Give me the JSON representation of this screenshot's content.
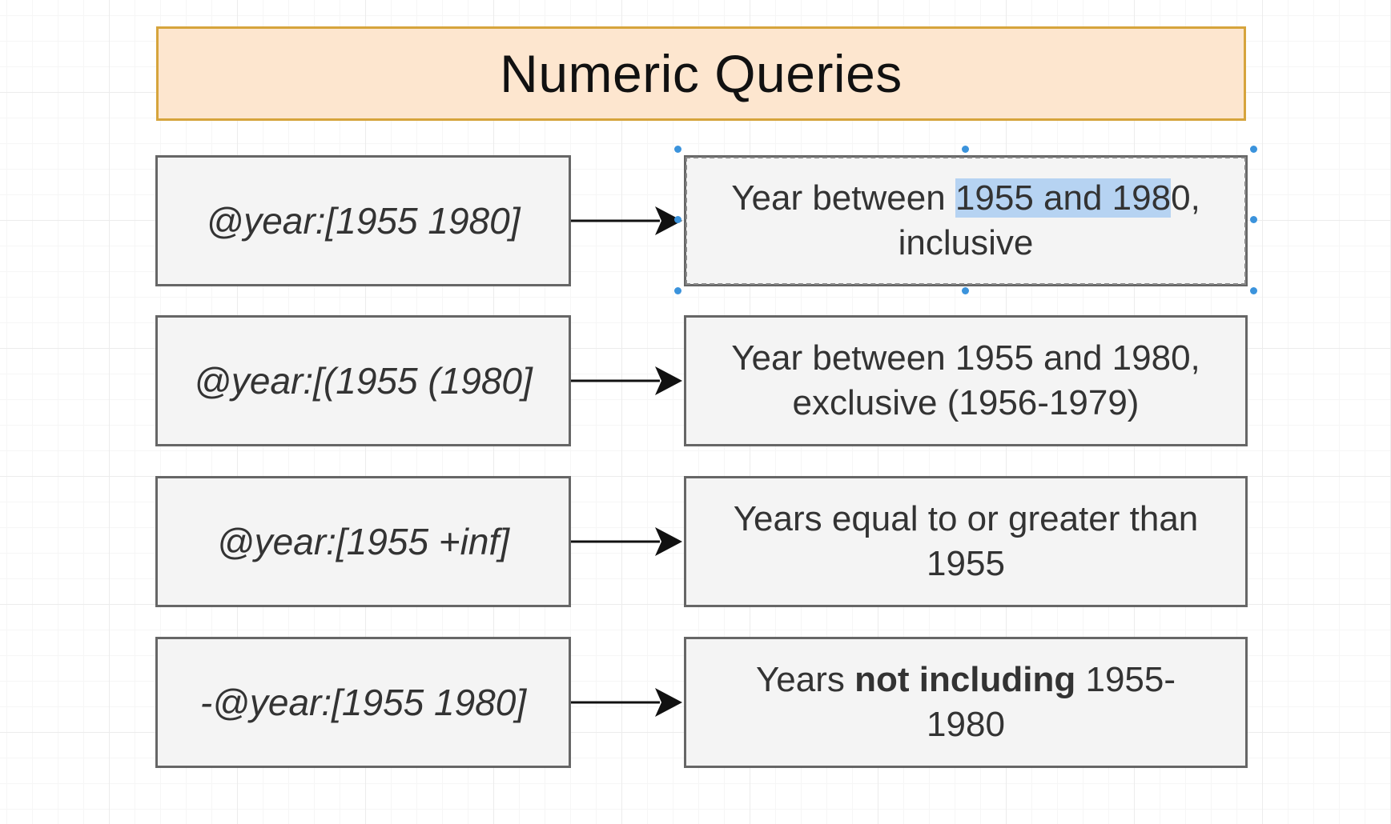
{
  "title": "Numeric Queries",
  "colors": {
    "title_fill": "#fde6cf",
    "title_border": "#d6a43c",
    "node_fill": "#f4f4f4",
    "node_border": "#666666",
    "selection_handle": "#3b93dc",
    "text_highlight": "#b6d3f2"
  },
  "rows": [
    {
      "query": "@year:[1955 1980]",
      "result": {
        "before": "Year between ",
        "highlighted": "1955 and 198",
        "after_highlight": "0",
        "line1_end": ",",
        "line2": "inclusive"
      }
    },
    {
      "query": "@year:[(1955 (1980]",
      "result": {
        "line1": "Year between 1955 and 1980,",
        "line2": "exclusive (1956-1979)"
      }
    },
    {
      "query": "@year:[1955 +inf]",
      "result": {
        "line1": "Years equal to or greater than",
        "line2": "1955"
      }
    },
    {
      "query": "-@year:[1955 1980]",
      "result": {
        "prefix": "Years ",
        "bold": "not including",
        "suffix": " 1955-",
        "line2": "1980"
      }
    }
  ]
}
